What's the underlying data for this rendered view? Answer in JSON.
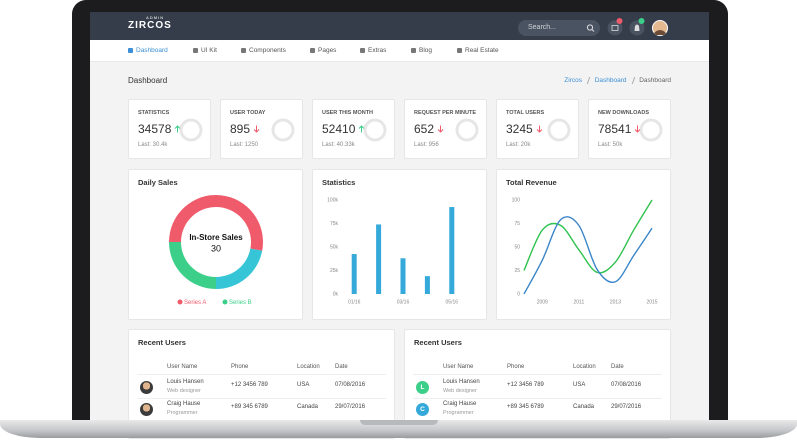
{
  "header": {
    "logo_small": "ADMIN",
    "logo": "ZIRCOS",
    "search_placeholder": "Search..."
  },
  "menu": [
    "Dashboard",
    "UI Kit",
    "Components",
    "Pages",
    "Extras",
    "Blog",
    "Real Estate"
  ],
  "page_title": "Dashboard",
  "breadcrumb": [
    "Zircos",
    "Dashboard",
    "Dashboard"
  ],
  "stats": [
    {
      "label": "STATISTICS",
      "value": 34578,
      "last": "Last: 30.4k",
      "trend": "up"
    },
    {
      "label": "USER TODAY",
      "value": 895,
      "last": "Last: 1250",
      "trend": "down"
    },
    {
      "label": "USER THIS MONTH",
      "value": 52410,
      "last": "Last: 40.33k",
      "trend": "up"
    },
    {
      "label": "REQUEST PER MINUTE",
      "value": 652,
      "last": "Last: 956",
      "trend": "down"
    },
    {
      "label": "TOTAL USERS",
      "value": 3245,
      "last": "Last: 20k",
      "trend": "down"
    },
    {
      "label": "NEW DOWNLOADS",
      "value": 78541,
      "last": "Last: 50k",
      "trend": "down"
    }
  ],
  "chart_data": [
    {
      "type": "pie",
      "donut": true,
      "title": "Daily Sales",
      "center_label": "In-Store Sales",
      "center_value": 30,
      "categories": [
        "Series A",
        null,
        "Series B"
      ],
      "values": [
        53,
        22,
        25
      ],
      "colors": [
        "#f05b6b",
        "#35c5d6",
        "#3ccf8a"
      ]
    },
    {
      "type": "bar",
      "title": "Statistics",
      "categories": [
        "01/16",
        null,
        "03/16",
        null,
        "05/16"
      ],
      "values": [
        42500,
        74000,
        38000,
        19000,
        92500
      ],
      "color": "#35a9d9",
      "ylim": [
        0,
        100000
      ],
      "yticks": [
        {
          "value": 0,
          "label": "0k"
        },
        {
          "value": 25000,
          "label": "25k"
        },
        {
          "value": 50000,
          "label": "50k"
        },
        {
          "value": 75000,
          "label": "75k"
        },
        {
          "value": 100000,
          "label": "100k"
        }
      ]
    },
    {
      "type": "line",
      "title": "Total Revenue",
      "x": [
        2008,
        2009,
        2010,
        2011,
        2012,
        2013,
        2014,
        2015
      ],
      "xlim": [
        2008,
        2015
      ],
      "xticks": [
        2009,
        2011,
        2013,
        2015
      ],
      "ylim": [
        0,
        100
      ],
      "yticks": [
        0,
        25,
        50,
        75,
        100
      ],
      "series": [
        {
          "color": "#2fc24f",
          "values": [
            25,
            68,
            73,
            47,
            23,
            34,
            68,
            100
          ]
        },
        {
          "color": "#3a86c8",
          "values": [
            0,
            36,
            79,
            73,
            26,
            13,
            41,
            70
          ]
        }
      ]
    }
  ],
  "tables": [
    {
      "title": "Recent Users",
      "columns": [
        "User Name",
        "Phone",
        "Location",
        "Date"
      ],
      "rows": [
        {
          "name": "Louis Hansen",
          "role": "Web designer",
          "phone": "+12 3456 789",
          "location": "USA",
          "date": "07/08/2016"
        },
        {
          "name": "Craig Hause",
          "role": "Programmer",
          "phone": "+89 345 6789",
          "location": "Canada",
          "date": "29/07/2016"
        }
      ]
    },
    {
      "title": "Recent Users",
      "columns": [
        "User Name",
        "Phone",
        "Location",
        "Date"
      ],
      "rows": [
        {
          "avatar": "L",
          "avatar_color": "#3ccf8a",
          "name": "Louis Hansen",
          "role": "Web designer",
          "phone": "+12 3456 789",
          "location": "USA",
          "date": "07/08/2016"
        },
        {
          "avatar": "C",
          "avatar_color": "#35a9d9",
          "name": "Craig Hause",
          "role": "Programmer",
          "phone": "+89 345 6789",
          "location": "Canada",
          "date": "29/07/2016"
        }
      ]
    }
  ]
}
